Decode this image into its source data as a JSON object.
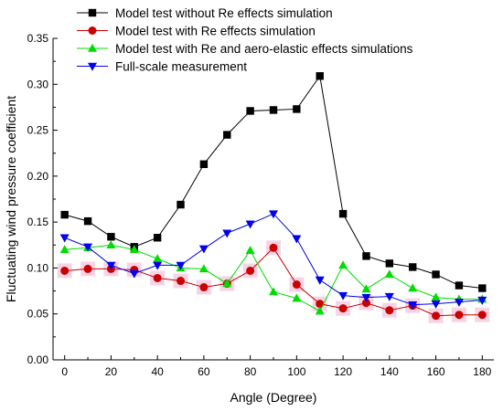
{
  "chart_data": {
    "type": "line",
    "title": "",
    "xlabel": "Angle (Degree)",
    "ylabel": "Fluctuating wind pressure coefficient",
    "xlim": [
      -5,
      185
    ],
    "ylim": [
      0.0,
      0.35
    ],
    "xticks": [
      0,
      20,
      40,
      60,
      80,
      100,
      120,
      140,
      160,
      180
    ],
    "yticks": [
      0.0,
      0.05,
      0.1,
      0.15,
      0.2,
      0.25,
      0.3,
      0.35
    ],
    "ytick_labels": [
      "0.00",
      "0.05",
      "0.10",
      "0.15",
      "0.20",
      "0.25",
      "0.30",
      "0.35"
    ],
    "xtick_labels": [
      "0",
      "20",
      "40",
      "60",
      "80",
      "100",
      "120",
      "140",
      "160",
      "180"
    ],
    "x": [
      0,
      10,
      20,
      30,
      40,
      50,
      60,
      70,
      80,
      90,
      100,
      110,
      120,
      130,
      140,
      150,
      160,
      170,
      180
    ],
    "legend_placement": "top-left",
    "grid": false,
    "series": [
      {
        "name": "Model test without Re effects simulation",
        "color": "#000000",
        "marker": "square",
        "values": [
          0.158,
          0.151,
          0.134,
          0.123,
          0.133,
          0.169,
          0.213,
          0.245,
          0.271,
          0.272,
          0.273,
          0.309,
          0.159,
          0.113,
          0.105,
          0.101,
          0.093,
          0.081,
          0.078
        ]
      },
      {
        "name": "Model test with Re effects simulation",
        "color": "#cc0000",
        "marker": "circle",
        "values": [
          0.097,
          0.099,
          0.099,
          0.098,
          0.089,
          0.086,
          0.079,
          0.083,
          0.097,
          0.122,
          0.082,
          0.061,
          0.056,
          0.062,
          0.054,
          0.059,
          0.048,
          0.049,
          0.049
        ]
      },
      {
        "name": "Model test with Re and aero-elastic effects simulations",
        "color": "#00dd00",
        "marker": "triangle-up",
        "values": [
          0.12,
          0.122,
          0.125,
          0.12,
          0.11,
          0.1,
          0.099,
          0.083,
          0.119,
          0.074,
          0.067,
          0.053,
          0.103,
          0.077,
          0.093,
          0.078,
          0.068,
          0.066,
          0.066
        ]
      },
      {
        "name": "Full-scale measurement",
        "color": "#0000ee",
        "marker": "triangle-down",
        "values": [
          0.133,
          0.123,
          0.103,
          0.094,
          0.103,
          0.103,
          0.121,
          0.138,
          0.148,
          0.159,
          0.132,
          0.087,
          0.07,
          0.068,
          0.069,
          0.06,
          0.061,
          0.063,
          0.065
        ]
      }
    ]
  }
}
